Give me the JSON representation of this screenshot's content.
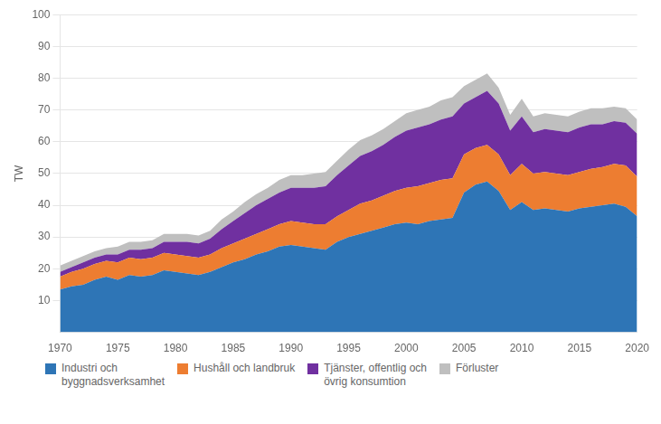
{
  "chart_data": {
    "type": "area",
    "stacked": true,
    "y_label": "TW",
    "x": [
      1970,
      1971,
      1972,
      1973,
      1974,
      1975,
      1976,
      1977,
      1978,
      1979,
      1980,
      1981,
      1982,
      1983,
      1984,
      1985,
      1986,
      1987,
      1988,
      1989,
      1990,
      1991,
      1992,
      1993,
      1994,
      1995,
      1996,
      1997,
      1998,
      1999,
      2000,
      2001,
      2002,
      2003,
      2004,
      2005,
      2006,
      2007,
      2008,
      2009,
      2010,
      2011,
      2012,
      2013,
      2014,
      2015,
      2016,
      2017,
      2018,
      2019,
      2020
    ],
    "series": [
      {
        "name": "Industri och\nbyggnadsverksamhet",
        "color": "#2E75B6",
        "values": [
          13.5,
          14.5,
          15.0,
          16.5,
          17.5,
          16.5,
          18.0,
          17.5,
          18.0,
          19.5,
          19.0,
          18.5,
          18.0,
          19.0,
          20.5,
          22.0,
          23.0,
          24.5,
          25.5,
          27.0,
          27.5,
          27.0,
          26.5,
          26.0,
          28.5,
          30.0,
          31.0,
          32.0,
          33.0,
          34.0,
          34.5,
          34.0,
          35.0,
          35.5,
          36.0,
          44.0,
          46.5,
          47.5,
          44.5,
          38.5,
          41.0,
          38.5,
          39.0,
          38.5,
          38.0,
          39.0,
          39.5,
          40.0,
          40.5,
          39.5,
          36.5
        ]
      },
      {
        "name": "Hushåll och landbruk",
        "color": "#ED7D31",
        "values": [
          4.0,
          4.5,
          5.0,
          5.0,
          5.0,
          5.5,
          5.5,
          5.5,
          5.5,
          5.5,
          5.5,
          5.5,
          5.5,
          5.5,
          6.0,
          6.0,
          6.5,
          6.5,
          7.0,
          7.0,
          7.5,
          7.5,
          7.5,
          8.0,
          8.0,
          8.5,
          9.5,
          9.5,
          10.0,
          10.5,
          11.0,
          12.0,
          12.0,
          12.5,
          12.5,
          12.0,
          11.5,
          11.5,
          11.5,
          11.0,
          12.0,
          11.5,
          11.5,
          11.5,
          11.5,
          11.5,
          12.0,
          12.0,
          12.5,
          13.0,
          12.5
        ]
      },
      {
        "name": "Tjänster, offentlig och\növrig konsumtion",
        "color": "#7030A0",
        "values": [
          1.5,
          1.5,
          2.0,
          2.0,
          2.0,
          2.5,
          2.5,
          3.0,
          3.0,
          3.5,
          4.0,
          4.5,
          4.5,
          5.0,
          6.0,
          7.0,
          8.0,
          9.0,
          9.5,
          10.0,
          10.5,
          11.0,
          11.5,
          12.0,
          13.0,
          14.0,
          15.0,
          15.5,
          16.0,
          17.0,
          18.0,
          18.5,
          18.5,
          19.0,
          19.5,
          16.0,
          16.0,
          17.0,
          16.0,
          14.0,
          15.0,
          13.0,
          13.5,
          13.5,
          13.5,
          14.0,
          14.0,
          13.5,
          13.5,
          13.5,
          13.5
        ]
      },
      {
        "name": "Förluster",
        "color": "#BFBFBF",
        "values": [
          2.0,
          2.0,
          2.0,
          2.0,
          2.0,
          2.5,
          2.5,
          2.5,
          2.5,
          2.5,
          2.5,
          2.5,
          2.5,
          2.5,
          3.0,
          3.0,
          3.5,
          3.5,
          3.5,
          4.0,
          4.0,
          4.0,
          4.5,
          4.5,
          4.5,
          5.0,
          5.0,
          5.0,
          5.0,
          5.0,
          5.5,
          5.5,
          5.5,
          6.0,
          6.0,
          5.5,
          5.5,
          5.5,
          5.0,
          5.0,
          5.5,
          5.0,
          5.0,
          5.0,
          5.0,
          5.0,
          5.0,
          5.0,
          4.5,
          4.5,
          4.5
        ]
      }
    ],
    "xlim": [
      1970,
      2020
    ],
    "xticks": [
      1970,
      1975,
      1980,
      1985,
      1990,
      1995,
      2000,
      2005,
      2010,
      2015,
      2020
    ],
    "ylim": [
      0,
      100
    ],
    "yticks": [
      10,
      20,
      30,
      40,
      50,
      60,
      70,
      80,
      90,
      100
    ],
    "grid": "y",
    "legend": "bottom"
  }
}
